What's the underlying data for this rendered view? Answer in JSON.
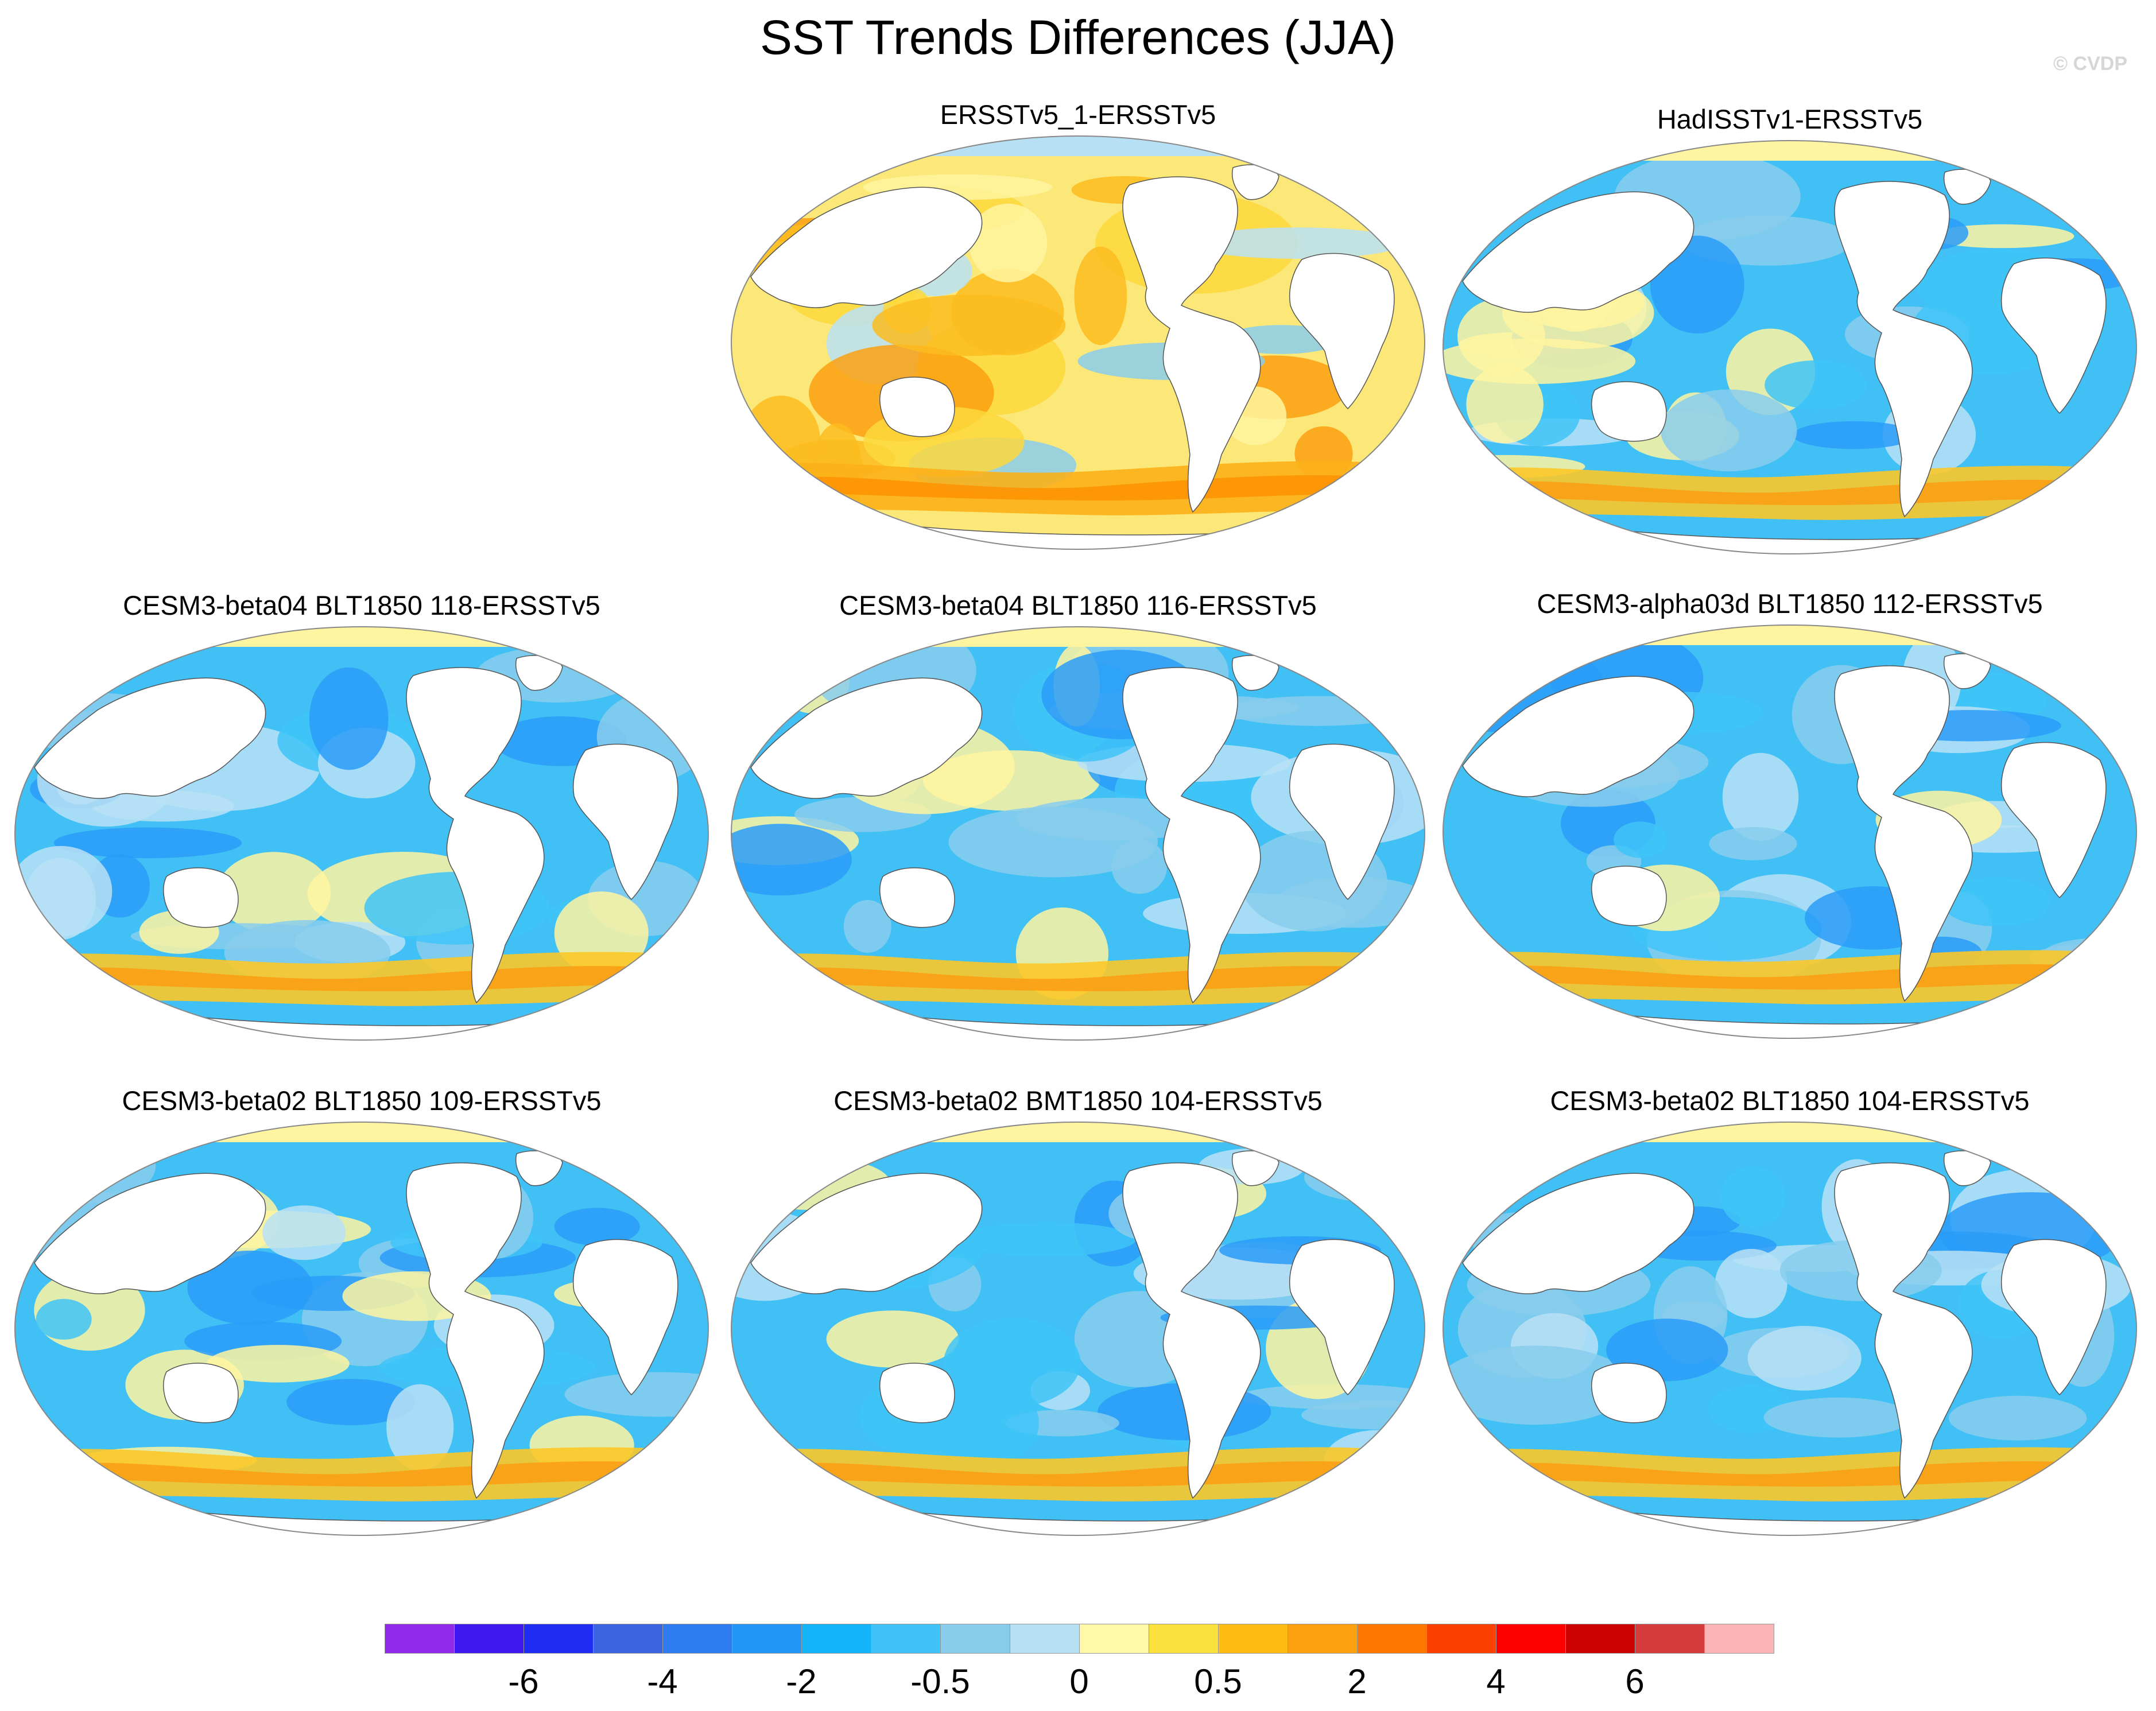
{
  "title": "SST Trends Differences (JJA)",
  "watermark": "© CVDP",
  "panels": [
    {
      "title": "ERSSTv5_1-ERSSTv5",
      "regime": "warm"
    },
    {
      "title": "HadISSTv1-ERSSTv5",
      "regime": "cool"
    },
    {
      "title": "CESM3-beta04 BLT1850 118-ERSSTv5",
      "regime": "cool"
    },
    {
      "title": "CESM3-beta04 BLT1850 116-ERSSTv5",
      "regime": "cool"
    },
    {
      "title": "CESM3-alpha03d BLT1850 112-ERSSTv5",
      "regime": "cool"
    },
    {
      "title": "CESM3-beta02 BLT1850 109-ERSSTv5",
      "regime": "cool"
    },
    {
      "title": "CESM3-beta02 BMT1850 104-ERSSTv5",
      "regime": "cool"
    },
    {
      "title": "CESM3-beta02 BLT1850 104-ERSSTv5",
      "regime": "cool"
    }
  ],
  "colorbar": {
    "colors": [
      "#8e2ae8",
      "#3e18f0",
      "#1e2cf4",
      "#3c64e0",
      "#2e7cf0",
      "#2496f8",
      "#14b4f8",
      "#40c4f8",
      "#88ccec",
      "#b8e0f4",
      "#fff8a8",
      "#fce03c",
      "#fcbc14",
      "#fca010",
      "#fc7800",
      "#fc4000",
      "#fc0000",
      "#cc0000",
      "#d63c3c",
      "#fcb4b4"
    ],
    "labels": [
      "-6",
      "-4",
      "-2",
      "-0.5",
      "0",
      "0.5",
      "2",
      "4",
      "6"
    ],
    "label_boundary_index": [
      2,
      4,
      6,
      8,
      10,
      12,
      14,
      16,
      18
    ]
  }
}
